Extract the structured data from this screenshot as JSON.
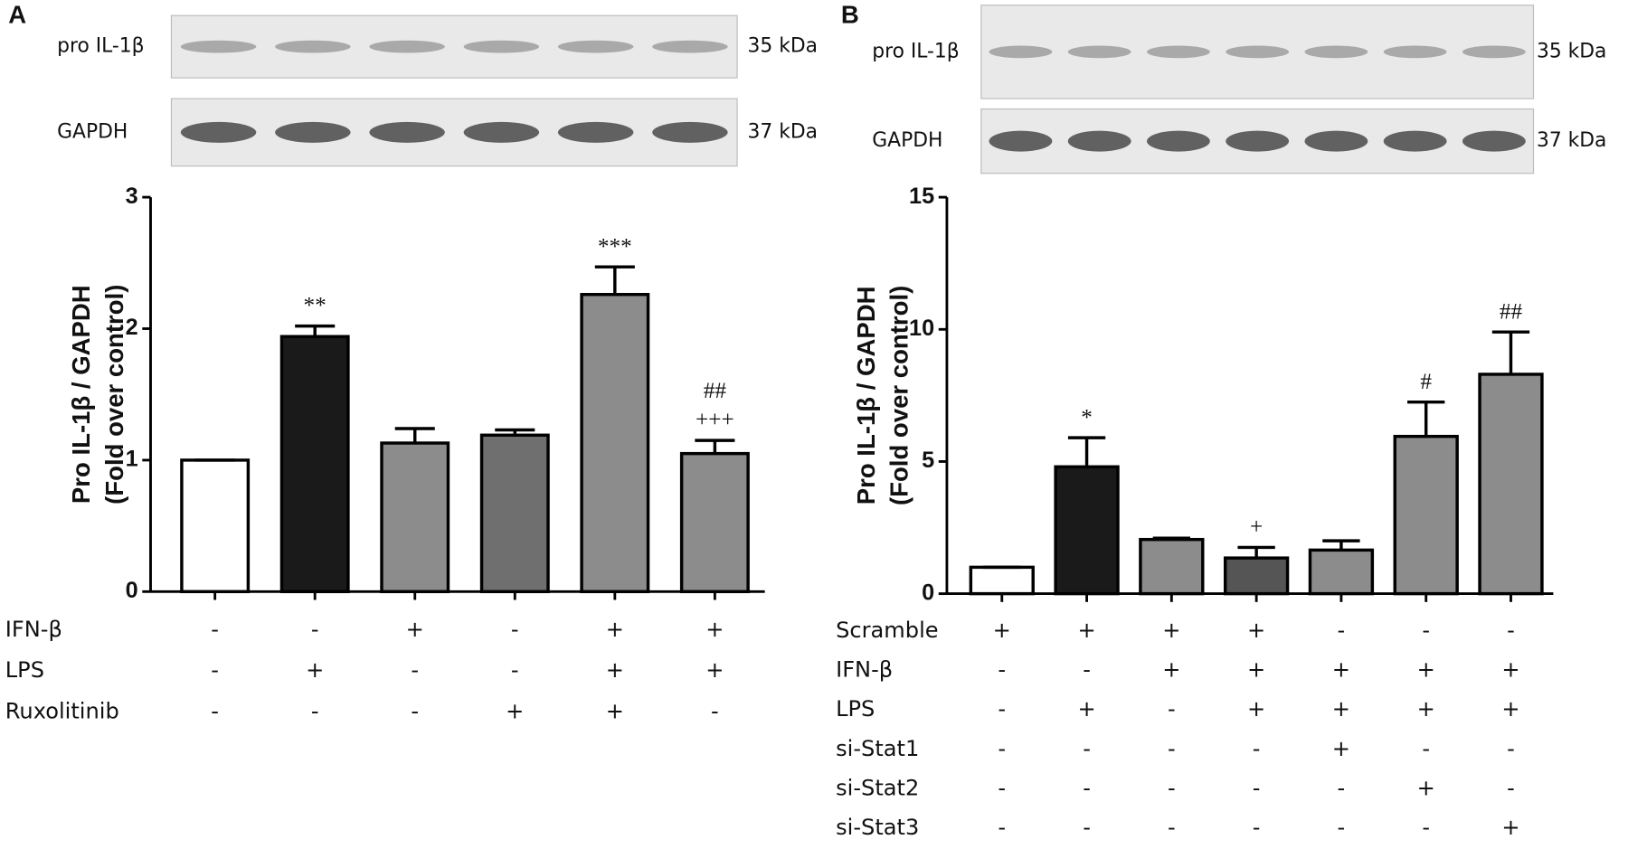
{
  "chart_data": [
    {
      "type": "bar",
      "panel": "A",
      "y_label": [
        "Pro IL-1β / GAPDH",
        "(Fold over control)"
      ],
      "values": [
        1.0,
        1.94,
        1.13,
        1.19,
        2.26,
        1.05
      ],
      "errors": [
        0,
        0.08,
        0.11,
        0.04,
        0.21,
        0.1
      ],
      "colors": [
        "#ffffff",
        "#1a1a1a",
        "#8c8c8c",
        "#6f6f6f",
        "#8c8c8c",
        "#8c8c8c"
      ],
      "ylim": [
        0,
        3
      ],
      "yticks": [
        0,
        1,
        2,
        3
      ],
      "annotations": [
        [],
        [
          "**"
        ],
        [],
        [],
        [
          "***"
        ],
        [
          "##",
          "+++"
        ]
      ],
      "conditions": [
        {
          "label": "IFN-β",
          "values": [
            "-",
            "-",
            "+",
            "-",
            "+",
            "+"
          ]
        },
        {
          "label": "LPS",
          "values": [
            "-",
            "+",
            "-",
            "-",
            "+",
            "+"
          ]
        },
        {
          "label": "Ruxolitinib",
          "values": [
            "-",
            "-",
            "-",
            "+",
            "+",
            "-"
          ]
        }
      ],
      "blots": [
        {
          "label": "pro IL-1β",
          "size": "35 kDa"
        },
        {
          "label": "GAPDH",
          "size": "37 kDa"
        }
      ]
    },
    {
      "type": "bar",
      "panel": "B",
      "y_label": [
        "Pro IL-1β / GAPDH",
        "(Fold over control)"
      ],
      "values": [
        1.0,
        4.8,
        2.05,
        1.35,
        1.65,
        5.95,
        8.3
      ],
      "errors": [
        0,
        1.1,
        0.05,
        0.4,
        0.35,
        1.3,
        1.6
      ],
      "colors": [
        "#ffffff",
        "#1a1a1a",
        "#8c8c8c",
        "#555555",
        "#8c8c8c",
        "#8c8c8c",
        "#8c8c8c"
      ],
      "ylim": [
        0,
        15
      ],
      "yticks": [
        0,
        5,
        10,
        15
      ],
      "annotations": [
        [],
        [
          "*"
        ],
        [],
        [
          "+"
        ],
        [],
        [
          "#"
        ],
        [
          "##"
        ]
      ],
      "conditions": [
        {
          "label": "Scramble",
          "values": [
            "+",
            "+",
            "+",
            "+",
            "-",
            "-",
            "-"
          ]
        },
        {
          "label": "IFN-β",
          "values": [
            "-",
            "-",
            "+",
            "+",
            "+",
            "+",
            "+"
          ]
        },
        {
          "label": "LPS",
          "values": [
            "-",
            "+",
            "-",
            "+",
            "+",
            "+",
            "+"
          ]
        },
        {
          "label": "si-Stat1",
          "values": [
            "-",
            "-",
            "-",
            "-",
            "+",
            "-",
            "-"
          ]
        },
        {
          "label": "si-Stat2",
          "values": [
            "-",
            "-",
            "-",
            "-",
            "-",
            "+",
            "-"
          ]
        },
        {
          "label": "si-Stat3",
          "values": [
            "-",
            "-",
            "-",
            "-",
            "-",
            "-",
            "+"
          ]
        }
      ],
      "blots": [
        {
          "label": "pro IL-1β",
          "size": "35 kDa"
        },
        {
          "label": "GAPDH",
          "size": "37 kDa"
        }
      ]
    }
  ]
}
